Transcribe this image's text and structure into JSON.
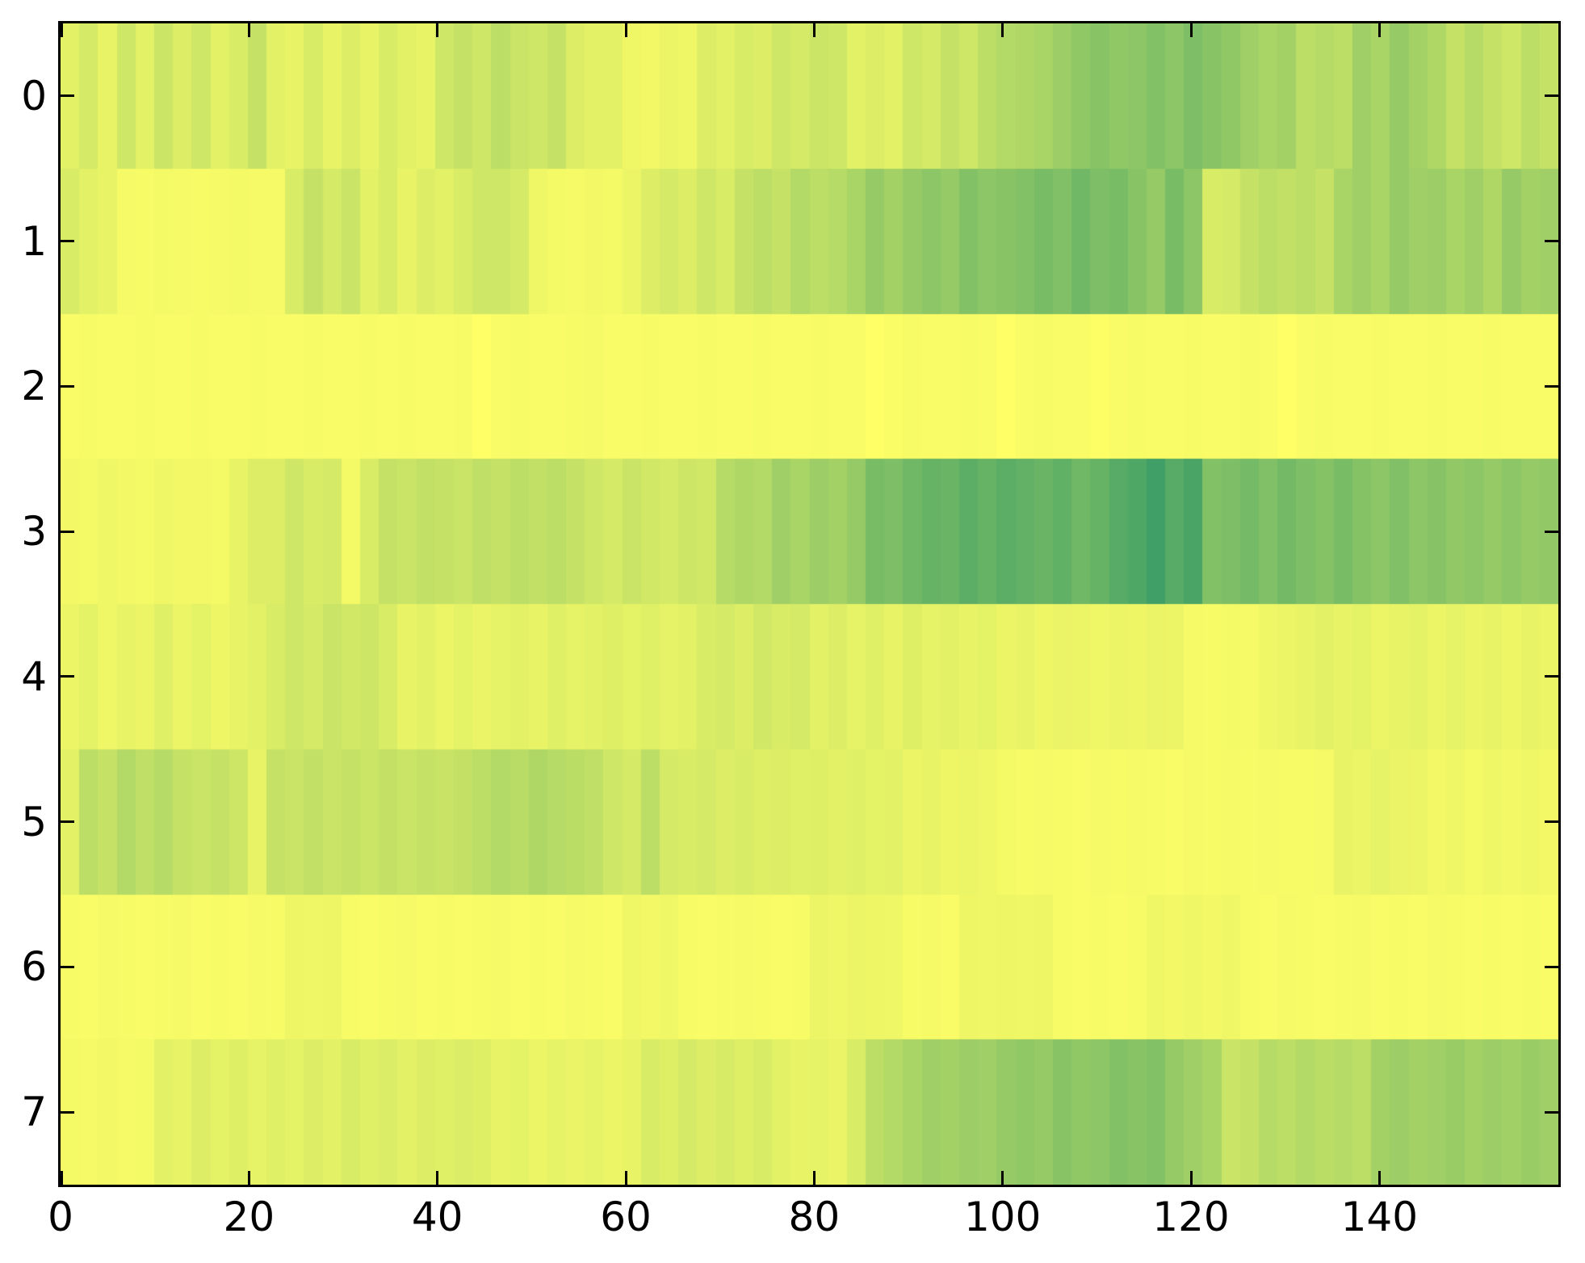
{
  "figure": {
    "background": "#ffffff",
    "spine_color": "#000000",
    "tick_color": "#000000",
    "label_color": "#000000"
  },
  "chart_data": {
    "type": "heatmap",
    "title": "",
    "xlabel": "",
    "ylabel": "",
    "x_ticks": [
      0,
      20,
      40,
      60,
      80,
      100,
      120,
      140
    ],
    "y_ticks": [
      0,
      1,
      2,
      3,
      4,
      5,
      6,
      7
    ],
    "x_range": [
      0,
      159
    ],
    "rows": 8,
    "cols_per_row": 80,
    "grid": false,
    "legend": "none",
    "colormap": {
      "name": "summer-partial",
      "low_value_color": "#ffff66",
      "high_value_color": "#40a066",
      "formula": "t = 1 - 0.75*v; rgb(255*t, 255*(0.5+t/2), 102)"
    },
    "values": [
      [
        0.15,
        0.22,
        0.12,
        0.25,
        0.15,
        0.27,
        0.18,
        0.25,
        0.15,
        0.2,
        0.3,
        0.15,
        0.12,
        0.2,
        0.12,
        0.18,
        0.12,
        0.2,
        0.15,
        0.12,
        0.25,
        0.3,
        0.25,
        0.35,
        0.28,
        0.25,
        0.3,
        0.18,
        0.15,
        0.15,
        0.08,
        0.07,
        0.1,
        0.08,
        0.18,
        0.15,
        0.2,
        0.18,
        0.25,
        0.22,
        0.27,
        0.25,
        0.15,
        0.18,
        0.15,
        0.25,
        0.22,
        0.3,
        0.25,
        0.35,
        0.4,
        0.42,
        0.45,
        0.52,
        0.58,
        0.62,
        0.58,
        0.6,
        0.65,
        0.6,
        0.68,
        0.62,
        0.58,
        0.5,
        0.45,
        0.48,
        0.35,
        0.38,
        0.35,
        0.5,
        0.45,
        0.55,
        0.48,
        0.42,
        0.3,
        0.38,
        0.3,
        0.25,
        0.35,
        0.3
      ],
      [
        0.2,
        0.15,
        0.12,
        0.05,
        0.04,
        0.06,
        0.05,
        0.04,
        0.05,
        0.06,
        0.05,
        0.05,
        0.2,
        0.3,
        0.22,
        0.28,
        0.15,
        0.2,
        0.12,
        0.18,
        0.15,
        0.2,
        0.25,
        0.25,
        0.22,
        0.08,
        0.06,
        0.05,
        0.07,
        0.06,
        0.1,
        0.18,
        0.22,
        0.18,
        0.25,
        0.2,
        0.3,
        0.35,
        0.3,
        0.4,
        0.35,
        0.38,
        0.45,
        0.55,
        0.48,
        0.55,
        0.6,
        0.55,
        0.65,
        0.6,
        0.62,
        0.65,
        0.7,
        0.66,
        0.74,
        0.68,
        0.7,
        0.62,
        0.55,
        0.7,
        0.6,
        0.2,
        0.22,
        0.3,
        0.35,
        0.32,
        0.35,
        0.3,
        0.45,
        0.5,
        0.45,
        0.55,
        0.5,
        0.52,
        0.45,
        0.5,
        0.42,
        0.55,
        0.48,
        0.5
      ],
      [
        0.03,
        0.04,
        0.03,
        0.03,
        0.04,
        0.03,
        0.03,
        0.04,
        0.03,
        0.03,
        0.04,
        0.03,
        0.03,
        0.04,
        0.03,
        0.03,
        0.04,
        0.03,
        0.04,
        0.03,
        0.03,
        0.04,
        0.0,
        0.03,
        0.04,
        0.03,
        0.03,
        0.04,
        0.05,
        0.03,
        0.03,
        0.04,
        0.03,
        0.03,
        0.04,
        0.03,
        0.03,
        0.04,
        0.03,
        0.03,
        0.04,
        0.03,
        0.03,
        0.0,
        0.02,
        0.04,
        0.03,
        0.03,
        0.04,
        0.03,
        0.0,
        0.03,
        0.04,
        0.03,
        0.03,
        0.01,
        0.03,
        0.04,
        0.03,
        0.03,
        0.04,
        0.03,
        0.03,
        0.04,
        0.03,
        0.0,
        0.03,
        0.04,
        0.03,
        0.03,
        0.04,
        0.03,
        0.03,
        0.04,
        0.03,
        0.03,
        0.04,
        0.03,
        0.03,
        0.03
      ],
      [
        0.07,
        0.06,
        0.08,
        0.07,
        0.06,
        0.08,
        0.07,
        0.07,
        0.06,
        0.12,
        0.18,
        0.18,
        0.25,
        0.2,
        0.22,
        0.06,
        0.2,
        0.3,
        0.28,
        0.32,
        0.3,
        0.28,
        0.33,
        0.3,
        0.35,
        0.32,
        0.35,
        0.3,
        0.25,
        0.22,
        0.28,
        0.24,
        0.22,
        0.26,
        0.24,
        0.38,
        0.42,
        0.4,
        0.5,
        0.45,
        0.52,
        0.48,
        0.55,
        0.7,
        0.68,
        0.75,
        0.8,
        0.78,
        0.85,
        0.8,
        0.85,
        0.82,
        0.78,
        0.83,
        0.75,
        0.8,
        0.88,
        0.92,
        1.0,
        0.88,
        0.95,
        0.65,
        0.68,
        0.72,
        0.66,
        0.73,
        0.68,
        0.64,
        0.7,
        0.64,
        0.6,
        0.66,
        0.6,
        0.63,
        0.57,
        0.6,
        0.55,
        0.6,
        0.55,
        0.57
      ],
      [
        0.1,
        0.14,
        0.08,
        0.12,
        0.1,
        0.16,
        0.1,
        0.14,
        0.09,
        0.12,
        0.15,
        0.2,
        0.25,
        0.22,
        0.28,
        0.24,
        0.26,
        0.2,
        0.12,
        0.15,
        0.1,
        0.14,
        0.11,
        0.13,
        0.15,
        0.12,
        0.16,
        0.13,
        0.15,
        0.17,
        0.14,
        0.16,
        0.13,
        0.15,
        0.2,
        0.22,
        0.18,
        0.24,
        0.2,
        0.22,
        0.15,
        0.18,
        0.13,
        0.16,
        0.12,
        0.17,
        0.13,
        0.15,
        0.12,
        0.14,
        0.1,
        0.12,
        0.09,
        0.11,
        0.1,
        0.08,
        0.1,
        0.09,
        0.11,
        0.1,
        0.05,
        0.04,
        0.06,
        0.05,
        0.08,
        0.1,
        0.12,
        0.15,
        0.12,
        0.14,
        0.1,
        0.12,
        0.14,
        0.1,
        0.13,
        0.1,
        0.12,
        0.09,
        0.12,
        0.1
      ],
      [
        0.15,
        0.35,
        0.3,
        0.4,
        0.33,
        0.38,
        0.3,
        0.28,
        0.3,
        0.26,
        0.12,
        0.3,
        0.28,
        0.32,
        0.28,
        0.3,
        0.27,
        0.31,
        0.28,
        0.3,
        0.29,
        0.31,
        0.35,
        0.4,
        0.37,
        0.42,
        0.38,
        0.36,
        0.33,
        0.25,
        0.22,
        0.35,
        0.22,
        0.2,
        0.22,
        0.18,
        0.2,
        0.17,
        0.18,
        0.16,
        0.17,
        0.15,
        0.16,
        0.14,
        0.15,
        0.1,
        0.12,
        0.09,
        0.1,
        0.08,
        0.06,
        0.04,
        0.05,
        0.04,
        0.03,
        0.05,
        0.04,
        0.05,
        0.04,
        0.03,
        0.05,
        0.04,
        0.05,
        0.04,
        0.05,
        0.04,
        0.04,
        0.05,
        0.12,
        0.1,
        0.13,
        0.11,
        0.1,
        0.07,
        0.08,
        0.06,
        0.08,
        0.07,
        0.08,
        0.07
      ],
      [
        0.04,
        0.03,
        0.05,
        0.04,
        0.03,
        0.04,
        0.05,
        0.03,
        0.04,
        0.03,
        0.05,
        0.04,
        0.09,
        0.08,
        0.09,
        0.04,
        0.03,
        0.04,
        0.05,
        0.03,
        0.04,
        0.03,
        0.04,
        0.05,
        0.03,
        0.04,
        0.03,
        0.05,
        0.04,
        0.03,
        0.08,
        0.07,
        0.08,
        0.04,
        0.03,
        0.04,
        0.05,
        0.04,
        0.03,
        0.04,
        0.1,
        0.08,
        0.1,
        0.09,
        0.08,
        0.04,
        0.05,
        0.03,
        0.09,
        0.08,
        0.09,
        0.08,
        0.09,
        0.04,
        0.03,
        0.04,
        0.03,
        0.04,
        0.08,
        0.07,
        0.08,
        0.07,
        0.08,
        0.04,
        0.03,
        0.05,
        0.04,
        0.03,
        0.04,
        0.05,
        0.03,
        0.04,
        0.03,
        0.05,
        0.04,
        0.03,
        0.04,
        0.03,
        0.04,
        0.03
      ],
      [
        0.06,
        0.05,
        0.07,
        0.05,
        0.06,
        0.15,
        0.12,
        0.18,
        0.14,
        0.17,
        0.13,
        0.16,
        0.14,
        0.18,
        0.15,
        0.2,
        0.16,
        0.19,
        0.15,
        0.18,
        0.16,
        0.19,
        0.17,
        0.12,
        0.14,
        0.1,
        0.13,
        0.11,
        0.13,
        0.1,
        0.12,
        0.2,
        0.17,
        0.22,
        0.18,
        0.21,
        0.17,
        0.2,
        0.15,
        0.12,
        0.13,
        0.11,
        0.2,
        0.35,
        0.4,
        0.45,
        0.5,
        0.48,
        0.52,
        0.5,
        0.55,
        0.58,
        0.55,
        0.62,
        0.58,
        0.6,
        0.65,
        0.62,
        0.65,
        0.55,
        0.5,
        0.45,
        0.28,
        0.3,
        0.38,
        0.35,
        0.4,
        0.36,
        0.38,
        0.35,
        0.48,
        0.52,
        0.48,
        0.5,
        0.53,
        0.48,
        0.52,
        0.49,
        0.53,
        0.5
      ]
    ]
  }
}
